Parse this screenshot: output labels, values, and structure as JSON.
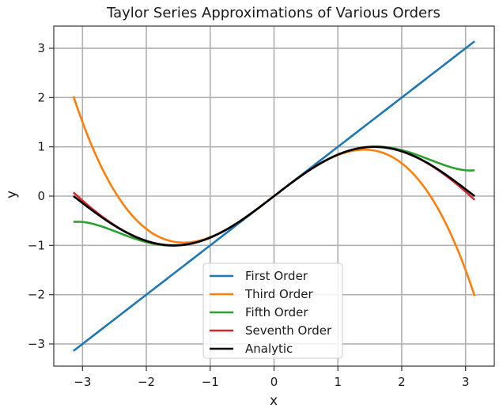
{
  "chart_data": {
    "type": "line",
    "title": "Taylor Series Approximations of Various Orders",
    "xlabel": "x",
    "ylabel": "y",
    "xlim": [
      -3.45,
      3.45
    ],
    "ylim": [
      -3.45,
      3.45
    ],
    "x_ticks": [
      -3,
      -2,
      -1,
      0,
      1,
      2,
      3
    ],
    "y_ticks": [
      -3,
      -2,
      -1,
      0,
      1,
      2,
      3
    ],
    "x_tick_labels": [
      "−3",
      "−2",
      "−1",
      "0",
      "1",
      "2",
      "3"
    ],
    "y_tick_labels": [
      "−3",
      "−2",
      "−1",
      "0",
      "1",
      "2",
      "3"
    ],
    "grid": true,
    "legend_position": "lower-center",
    "x_range": [
      -3.14159,
      3.14159
    ],
    "series": [
      {
        "name": "First Order",
        "color": "#1f77b4",
        "x": [
          -3.14,
          -2,
          -1,
          0,
          1,
          2,
          3.14
        ],
        "y": [
          -3.14,
          -2,
          -1,
          0,
          1,
          2,
          3.14
        ]
      },
      {
        "name": "Third Order",
        "color": "#ff7f0e",
        "x": [
          -3.14,
          -2.5,
          -2,
          -1.5,
          -1,
          -0.5,
          0,
          0.5,
          1,
          1.5,
          2,
          2.5,
          3.14
        ],
        "y": [
          2.03,
          0.1,
          -0.67,
          -0.94,
          -0.83,
          -0.48,
          0,
          0.48,
          0.83,
          0.94,
          0.67,
          -0.1,
          -2.03
        ]
      },
      {
        "name": "Fifth Order",
        "color": "#2ca02c",
        "x": [
          -3.14,
          -2.75,
          -2.5,
          -2,
          -1.5,
          -1,
          -0.5,
          0,
          0.5,
          1,
          1.5,
          2,
          2.5,
          2.75,
          3.14
        ],
        "y": [
          -0.52,
          -0.59,
          -0.71,
          -0.93,
          -1.0,
          -0.84,
          -0.48,
          0,
          0.48,
          0.84,
          1.0,
          0.93,
          0.71,
          0.59,
          0.52
        ]
      },
      {
        "name": "Seventh Order",
        "color": "#d62728",
        "x": [
          -3.14,
          -2.75,
          -2.5,
          -2,
          -1.57,
          -1,
          -0.5,
          0,
          0.5,
          1,
          1.57,
          2,
          2.5,
          2.75,
          3.14
        ],
        "y": [
          0.08,
          -0.35,
          -0.6,
          -0.91,
          -1.0,
          -0.84,
          -0.48,
          0,
          0.48,
          0.84,
          1.0,
          0.91,
          0.6,
          0.35,
          -0.08
        ]
      },
      {
        "name": "Analytic",
        "color": "#000000",
        "x": [
          -3.14,
          -2.75,
          -2.5,
          -2,
          -1.57,
          -1,
          -0.5,
          0,
          0.5,
          1,
          1.57,
          2,
          2.5,
          2.75,
          3.14
        ],
        "y": [
          0,
          -0.38,
          -0.6,
          -0.91,
          -1.0,
          -0.84,
          -0.48,
          0,
          0.48,
          0.84,
          1.0,
          0.91,
          0.6,
          0.38,
          0
        ]
      }
    ]
  }
}
